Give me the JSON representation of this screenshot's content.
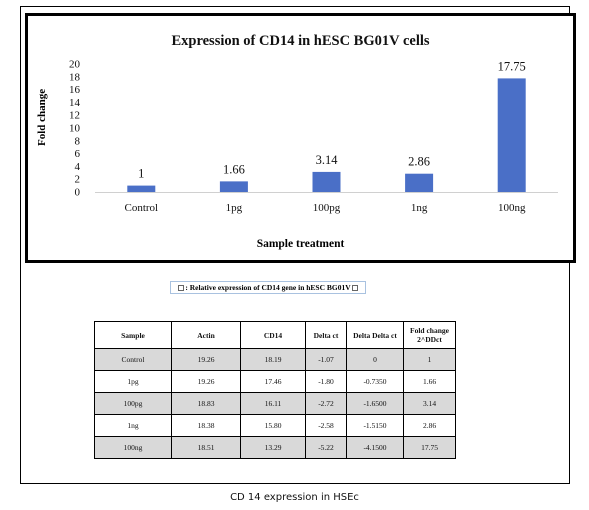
{
  "chart_data": {
    "type": "bar",
    "title": "Expression  of  CD14 in hESC BG01V cells",
    "xlabel": "Sample treatment",
    "ylabel": "Fold change",
    "categories": [
      "Control",
      "1pg",
      "100pg",
      "1ng",
      "100ng"
    ],
    "values": [
      1,
      1.66,
      3.14,
      2.86,
      17.75
    ],
    "data_labels": [
      "1",
      "1.66",
      "3.14",
      "2.86",
      "17.75"
    ],
    "ylim": [
      0,
      20
    ],
    "yticks": [
      "0",
      "2",
      "4",
      "6",
      "8",
      "10",
      "12",
      "14",
      "16",
      "18",
      "20"
    ],
    "grid": false,
    "bar_color": "#4a6fc7"
  },
  "table": {
    "caption": ": Relative expression of CD14 gene in hESC BG01V",
    "headers": [
      "Sample",
      "Actin",
      "CD14",
      "Delta ct",
      "Delta Delta ct",
      "Fold change 2^DDct"
    ],
    "rows": [
      [
        "Control",
        "19.26",
        "18.19",
        "-1.07",
        "0",
        "1"
      ],
      [
        "1pg",
        "19.26",
        "17.46",
        "-1.80",
        "-0.7350",
        "1.66"
      ],
      [
        "100pg",
        "18.83",
        "16.11",
        "-2.72",
        "-1.6500",
        "3.14"
      ],
      [
        "1ng",
        "18.38",
        "15.80",
        "-2.58",
        "-1.5150",
        "2.86"
      ],
      [
        "100ng",
        "18.51",
        "13.29",
        "-5.22",
        "-4.1500",
        "17.75"
      ]
    ]
  },
  "footer_caption": "CD 14 expression in HSEc"
}
